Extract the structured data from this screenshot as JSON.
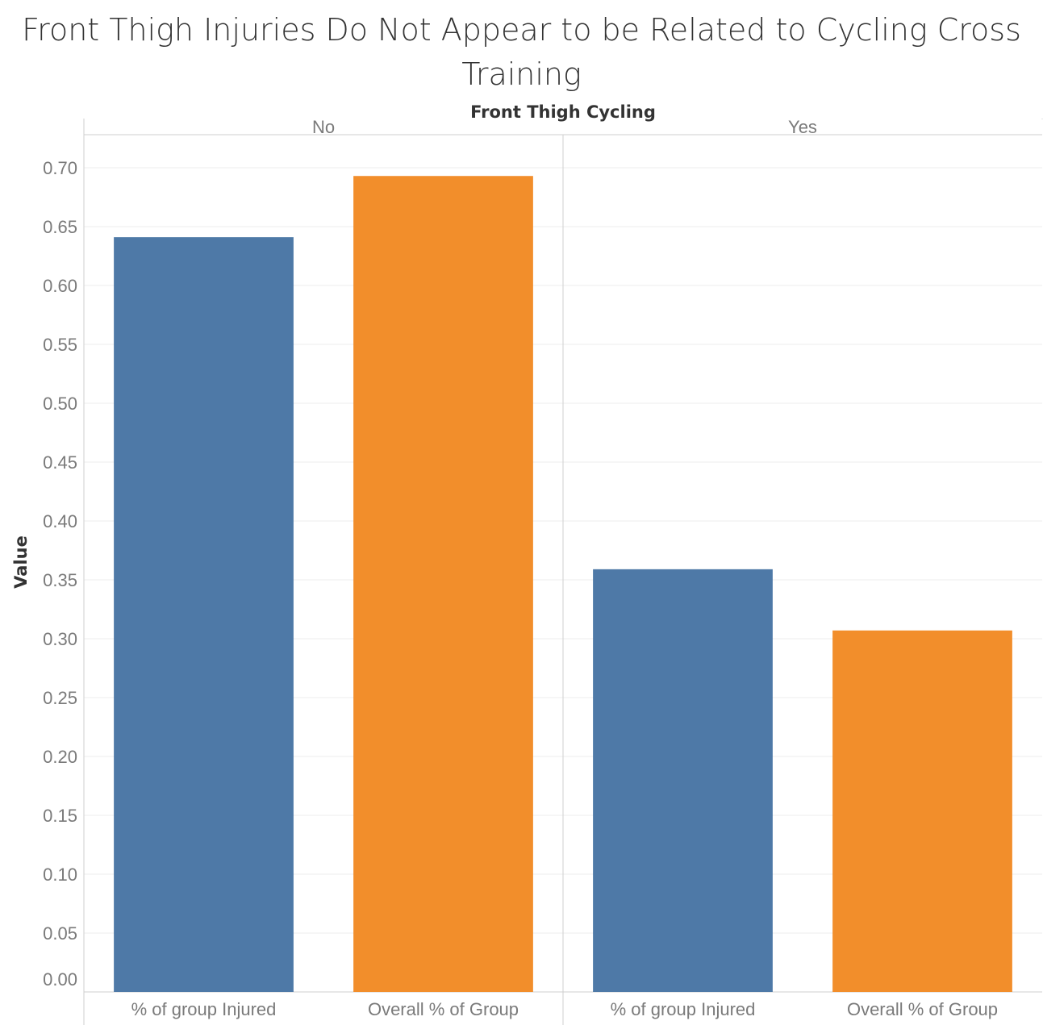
{
  "chart_data": {
    "type": "bar",
    "title": "Front Thigh Injuries Do Not Appear to be Related to Cycling Cross Training",
    "facet_label": "Front Thigh Cycling",
    "ylabel": "Value",
    "ylim": [
      0,
      0.72
    ],
    "yticks": [
      "0.00",
      "0.05",
      "0.10",
      "0.15",
      "0.20",
      "0.25",
      "0.30",
      "0.35",
      "0.40",
      "0.45",
      "0.50",
      "0.55",
      "0.60",
      "0.65",
      "0.70"
    ],
    "grid": true,
    "colors": {
      "% of group Injured": "#4e79a7",
      "Overall % of Group": "#f28e2b"
    },
    "panels": [
      {
        "name": "No",
        "categories": [
          "% of group Injured",
          "Overall % of Group"
        ],
        "values": [
          0.641,
          0.693
        ]
      },
      {
        "name": "Yes",
        "categories": [
          "% of group Injured",
          "Overall % of Group"
        ],
        "values": [
          0.359,
          0.307
        ]
      }
    ]
  }
}
